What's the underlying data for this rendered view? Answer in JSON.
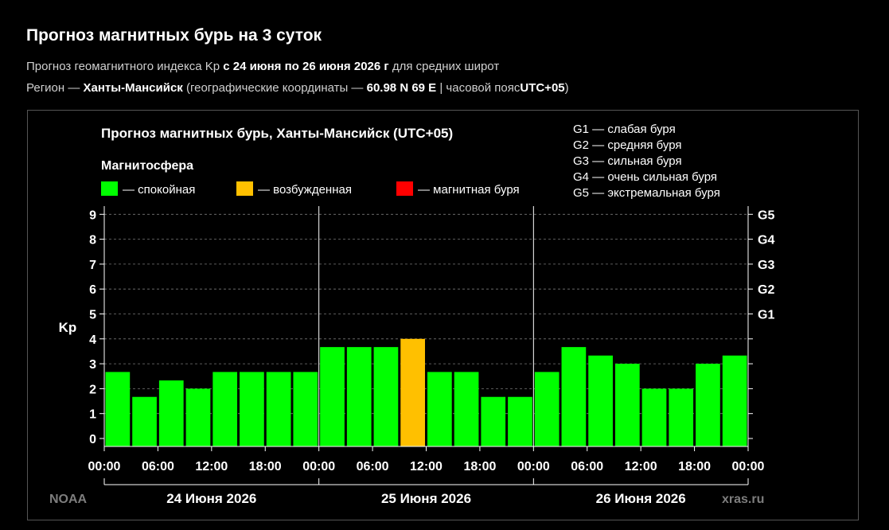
{
  "page": {
    "title": "Прогноз магнитных бурь на 3 суток",
    "sub1": {
      "prefix": "Прогноз геомагнитного индекса Kp",
      "range": "с 24 июня по 26 июня 2026 г",
      "suffix": "для средних широт"
    },
    "sub2": {
      "prefix": "Регион —",
      "region": "Ханты-Мансийск",
      "coords_label": "(географические координаты —",
      "coords": "60.98 N 69 E",
      "tz_label": "| часовой пояс",
      "tz": "UTC+05",
      "close": ")"
    }
  },
  "legend": {
    "title": "Магнитосфера",
    "items": [
      {
        "label": "— спокойная",
        "color": "#00ff00"
      },
      {
        "label": "— возбужденная",
        "color": "#ffc000"
      },
      {
        "label": "— магнитная буря",
        "color": "#ff0000"
      }
    ],
    "storm_levels": [
      "G1 — слабая буря",
      "G2 — средняя буря",
      "G3 — сильная буря",
      "G4 — очень сильная буря",
      "G5 — экстремальная буря"
    ]
  },
  "chart_data": {
    "type": "bar",
    "title": "Прогноз магнитных бурь, Ханты-Мансийск (UTC+05)",
    "ylabel": "Kp",
    "ylim": [
      0,
      9
    ],
    "y_ticks": [
      0,
      1,
      2,
      3,
      4,
      5,
      6,
      7,
      8,
      9
    ],
    "g_ticks": [
      {
        "kp": 5,
        "label": "G1"
      },
      {
        "kp": 6,
        "label": "G2"
      },
      {
        "kp": 7,
        "label": "G3"
      },
      {
        "kp": 8,
        "label": "G4"
      },
      {
        "kp": 9,
        "label": "G5"
      }
    ],
    "x_tick_labels": [
      "00:00",
      "06:00",
      "12:00",
      "18:00",
      "00:00",
      "06:00",
      "12:00",
      "18:00",
      "00:00",
      "06:00",
      "12:00",
      "18:00",
      "00:00"
    ],
    "days": [
      "24 Июня 2026",
      "25 Июня 2026",
      "26 Июня 2026"
    ],
    "bar_start_times": [
      "24 00:00",
      "24 03:00",
      "24 06:00",
      "24 09:00",
      "24 12:00",
      "24 15:00",
      "24 18:00",
      "24 21:00",
      "25 00:00",
      "25 03:00",
      "25 06:00",
      "25 09:00",
      "25 12:00",
      "25 15:00",
      "25 18:00",
      "25 21:00",
      "26 00:00",
      "26 03:00",
      "26 06:00",
      "26 09:00",
      "26 12:00",
      "26 15:00",
      "26 18:00",
      "26 21:00"
    ],
    "values": [
      2.67,
      1.67,
      2.33,
      2.0,
      2.67,
      2.67,
      2.67,
      2.67,
      3.67,
      3.67,
      3.67,
      4.0,
      2.67,
      2.67,
      1.67,
      1.67,
      2.67,
      3.67,
      3.33,
      3.0,
      2.0,
      2.0,
      3.0,
      3.33
    ],
    "colors": {
      "quiet": "#00ff00",
      "active": "#ffc000",
      "storm": "#ff0000"
    },
    "grid": true,
    "source_left": "NOAA",
    "source_right": "xras.ru"
  }
}
